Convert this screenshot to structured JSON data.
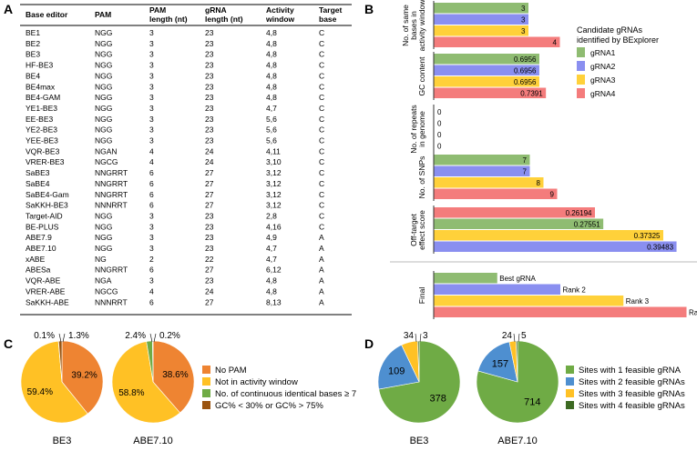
{
  "panels": {
    "A": "A",
    "B": "B",
    "C": "C",
    "D": "D"
  },
  "table": {
    "headers": [
      [
        "Base editor"
      ],
      [
        "PAM"
      ],
      [
        "PAM",
        "length (nt)"
      ],
      [
        "gRNA",
        "length (nt)"
      ],
      [
        "Activity",
        "window"
      ],
      [
        "Target",
        "base"
      ]
    ],
    "rows": [
      [
        "BE1",
        "NGG",
        "3",
        "23",
        "4,8",
        "C"
      ],
      [
        "BE2",
        "NGG",
        "3",
        "23",
        "4,8",
        "C"
      ],
      [
        "BE3",
        "NGG",
        "3",
        "23",
        "4,8",
        "C"
      ],
      [
        "HF-BE3",
        "NGG",
        "3",
        "23",
        "4,8",
        "C"
      ],
      [
        "BE4",
        "NGG",
        "3",
        "23",
        "4,8",
        "C"
      ],
      [
        "BE4max",
        "NGG",
        "3",
        "23",
        "4,8",
        "C"
      ],
      [
        "BE4-GAM",
        "NGG",
        "3",
        "23",
        "4,8",
        "C"
      ],
      [
        "YE1-BE3",
        "NGG",
        "3",
        "23",
        "4,7",
        "C"
      ],
      [
        "EE-BE3",
        "NGG",
        "3",
        "23",
        "5,6",
        "C"
      ],
      [
        "YE2-BE3",
        "NGG",
        "3",
        "23",
        "5,6",
        "C"
      ],
      [
        "YEE-BE3",
        "NGG",
        "3",
        "23",
        "5,6",
        "C"
      ],
      [
        "VQR-BE3",
        "NGAN",
        "4",
        "24",
        "4,11",
        "C"
      ],
      [
        "VRER-BE3",
        "NGCG",
        "4",
        "24",
        "3,10",
        "C"
      ],
      [
        "SaBE3",
        "NNGRRT",
        "6",
        "27",
        "3,12",
        "C"
      ],
      [
        "SaBE4",
        "NNGRRT",
        "6",
        "27",
        "3,12",
        "C"
      ],
      [
        "SaBE4-Gam",
        "NNGRRT",
        "6",
        "27",
        "3,12",
        "C"
      ],
      [
        "SaKKH-BE3",
        "NNNRRT",
        "6",
        "27",
        "3,12",
        "C"
      ],
      [
        "Target-AID",
        "NGG",
        "3",
        "23",
        "2,8",
        "C"
      ],
      [
        "BE-PLUS",
        "NGG",
        "3",
        "23",
        "4,16",
        "C"
      ],
      [
        "ABE7.9",
        "NGG",
        "3",
        "23",
        "4,9",
        "A"
      ],
      [
        "ABE7.10",
        "NGG",
        "3",
        "23",
        "4,7",
        "A"
      ],
      [
        "xABE",
        "NG",
        "2",
        "22",
        "4,7",
        "A"
      ],
      [
        "ABESa",
        "NNGRRT",
        "6",
        "27",
        "6,12",
        "A"
      ],
      [
        "VQR-ABE",
        "NGA",
        "3",
        "23",
        "4,8",
        "A"
      ],
      [
        "VRER-ABE",
        "NGCG",
        "4",
        "24",
        "4,8",
        "A"
      ],
      [
        "SaKKH-ABE",
        "NNNRRT",
        "6",
        "27",
        "8,13",
        "A"
      ]
    ]
  },
  "legendB": {
    "title_lines": [
      "Candidate gRNAs",
      "identified by BExplorer"
    ],
    "items": [
      {
        "label": "gRNA1",
        "color": "#8fbc72"
      },
      {
        "label": "gRNA2",
        "color": "#8a8ff0"
      },
      {
        "label": "gRNA3",
        "color": "#ffd13a"
      },
      {
        "label": "gRNA4",
        "color": "#f47c7c"
      }
    ]
  },
  "legendC": {
    "items": [
      {
        "label": "No PAM",
        "color": "#ee8432"
      },
      {
        "label": "Not in activity window",
        "color": "#ffc125"
      },
      {
        "label": "No. of continuous identical bases ≥ 7",
        "color": "#6fab45"
      },
      {
        "label": "GC% < 30% or GC% > 75%",
        "color": "#9a5410"
      }
    ]
  },
  "legendD": {
    "items": [
      {
        "label": "Sites with 1 feasible gRNA",
        "color": "#6fab45"
      },
      {
        "label": "Sites with 2 feasible gRNAs",
        "color": "#4e8fd0"
      },
      {
        "label": "Sites with 3 feasible gRNAs",
        "color": "#ffc125"
      },
      {
        "label": "Sites with 4 feasible gRNAs",
        "color": "#3d6a22"
      }
    ]
  },
  "chart_data": [
    {
      "panel": "B",
      "type": "bar",
      "orientation": "horizontal",
      "series_names": [
        "gRNA1",
        "gRNA2",
        "gRNA3",
        "gRNA4"
      ],
      "groups": [
        {
          "title_lines": [
            "No. of same",
            "bases in",
            "activity window"
          ],
          "values": [
            3,
            3,
            3,
            4
          ],
          "labels": [
            "3",
            "3",
            "3",
            "4"
          ],
          "max": 4
        },
        {
          "title_lines": [
            "GC content"
          ],
          "values": [
            0.6956,
            0.6956,
            0.6956,
            0.7391
          ],
          "labels": [
            "0.6956",
            "0.6956",
            "0.6956",
            "0.7391"
          ],
          "max": 1
        },
        {
          "title_lines": [
            "No. of repeats",
            "in genome"
          ],
          "values": [
            0,
            0,
            0,
            0
          ],
          "labels": [
            "0",
            "0",
            "0",
            "0"
          ],
          "max": 1
        },
        {
          "title_lines": [
            "No. of SNPs"
          ],
          "values": [
            7,
            7,
            8,
            9
          ],
          "labels": [
            "7",
            "7",
            "8",
            "9"
          ],
          "max": 12
        },
        {
          "title_lines": [
            "Off-target",
            "effect score"
          ],
          "values": [
            0.26194,
            0.27551,
            0.37325,
            0.39483
          ],
          "labels": [
            "0.26194",
            "0.27551",
            "0.37325",
            "0.39483"
          ],
          "series_order": [
            "gRNA4",
            "gRNA1",
            "gRNA3",
            "gRNA2"
          ],
          "max": 0.42
        },
        {
          "title_lines": [
            "Final"
          ],
          "values": [
            1,
            2,
            3,
            4
          ],
          "labels": [
            "Best gRNA",
            "Rank 2",
            "Rank 3",
            "Rank 4"
          ],
          "max": 4
        }
      ]
    },
    {
      "panel": "C",
      "type": "pie",
      "categories": [
        "No PAM",
        "Not in activity window",
        "No. of continuous identical bases ≥ 7",
        "GC% < 30% or GC% > 75%"
      ],
      "pies": [
        {
          "title": "BE3",
          "values": [
            39.2,
            59.4,
            0.1,
            1.3
          ],
          "labels": [
            "39.2%",
            "59.4%",
            "0.1%",
            "1.3%"
          ]
        },
        {
          "title": "ABE7.10",
          "values": [
            38.6,
            58.8,
            2.4,
            0.2
          ],
          "labels": [
            "38.6%",
            "58.8%",
            "2.4%",
            "0.2%"
          ]
        }
      ]
    },
    {
      "panel": "D",
      "type": "pie",
      "categories": [
        "Sites with 1 feasible gRNA",
        "Sites with 2 feasible gRNAs",
        "Sites with 3 feasible gRNAs",
        "Sites with 4 feasible gRNAs"
      ],
      "pies": [
        {
          "title": "BE3",
          "values": [
            378,
            109,
            34,
            3
          ],
          "labels": [
            "378",
            "109",
            "34",
            "3"
          ]
        },
        {
          "title": "ABE7.10",
          "values": [
            714,
            157,
            24,
            5
          ],
          "labels": [
            "714",
            "157",
            "24",
            "5"
          ]
        }
      ]
    }
  ]
}
